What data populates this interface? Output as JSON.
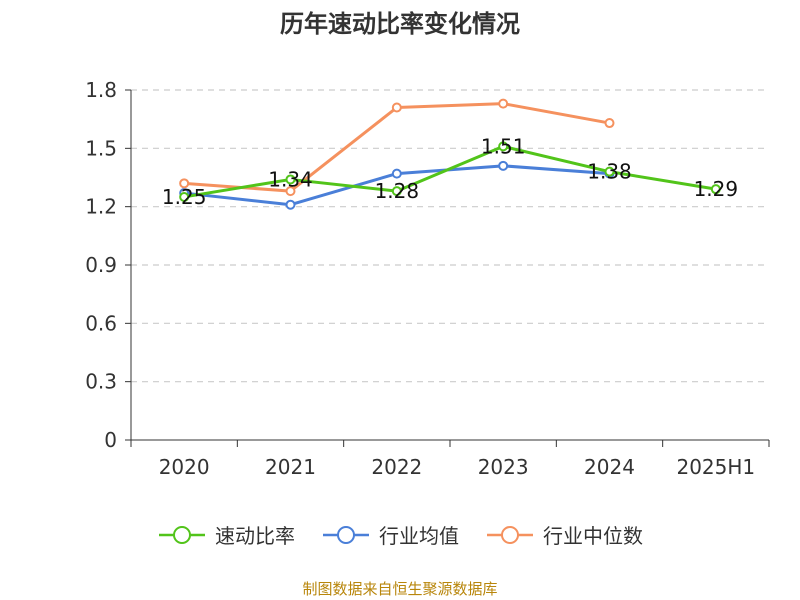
{
  "chart_data": {
    "type": "line",
    "title": "历年速动比率变化情况",
    "categories": [
      "2020",
      "2021",
      "2022",
      "2023",
      "2024",
      "2025H1"
    ],
    "ylim": [
      0,
      1.8
    ],
    "yticks": [
      "0",
      "0.3",
      "0.6",
      "0.9",
      "1.2",
      "1.5",
      "1.8"
    ],
    "grid": true,
    "legend_position": "bottom",
    "series": [
      {
        "name": "速动比率",
        "color": "#52c41a",
        "values": [
          1.25,
          1.34,
          1.28,
          1.51,
          1.38,
          1.29
        ],
        "labels": [
          "1.25",
          "1.34",
          "1.28",
          "1.51",
          "1.38",
          "1.29"
        ]
      },
      {
        "name": "行业均值",
        "color": "#4a7fd8",
        "values": [
          1.27,
          1.21,
          1.37,
          1.41,
          1.37,
          null
        ],
        "labels": []
      },
      {
        "name": "行业中位数",
        "color": "#f5915e",
        "values": [
          1.32,
          1.28,
          1.71,
          1.73,
          1.63,
          null
        ],
        "labels": []
      }
    ]
  },
  "source_note": "制图数据来自恒生聚源数据库"
}
